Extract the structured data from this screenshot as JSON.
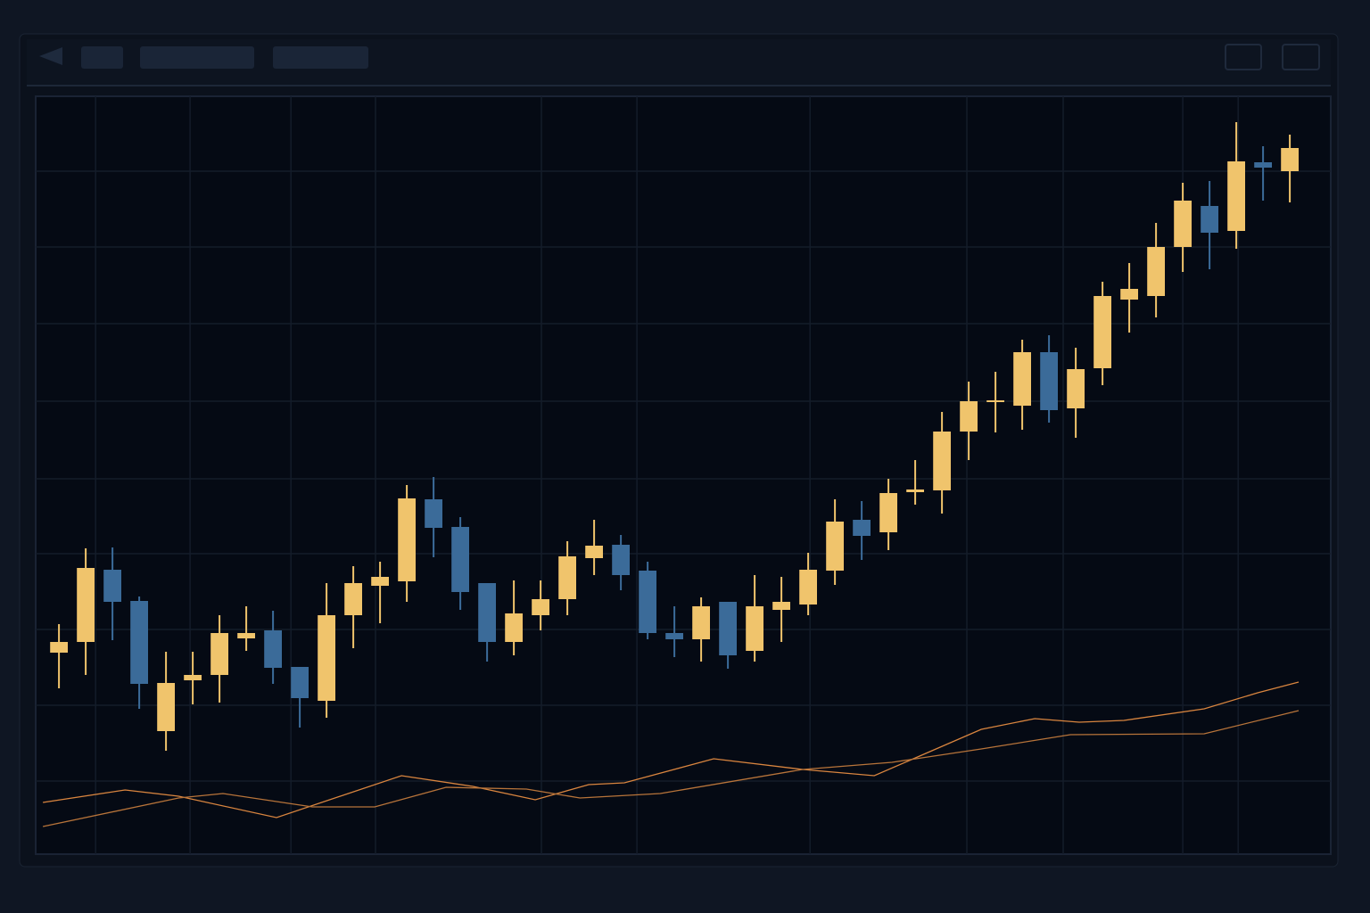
{
  "chart_data": {
    "type": "candlestick",
    "x": [
      0,
      1,
      2,
      3,
      4,
      5,
      6,
      7,
      8,
      9,
      10,
      11,
      12,
      13,
      14,
      15,
      16,
      17,
      18,
      19,
      20,
      21,
      22,
      23,
      24,
      25,
      26,
      27,
      28,
      29,
      30,
      31,
      32,
      33,
      34,
      35,
      36,
      37,
      38,
      39,
      40,
      41,
      42,
      43,
      44,
      45,
      46
    ],
    "open": [
      226,
      238,
      319,
      284,
      138,
      195,
      201,
      242,
      251,
      210,
      172,
      268,
      301,
      306,
      398,
      367,
      304,
      238,
      268,
      286,
      332,
      347,
      318,
      248,
      241,
      283,
      228,
      274,
      280,
      318,
      375,
      361,
      406,
      408,
      474,
      507,
      503,
      563,
      500,
      545,
      622,
      626,
      681,
      727,
      699,
      776,
      766
    ],
    "high": [
      258,
      343,
      344,
      289,
      227,
      227,
      268,
      278,
      273,
      210,
      304,
      323,
      328,
      414,
      423,
      378,
      304,
      307,
      307,
      351,
      375,
      358,
      328,
      278,
      288,
      283,
      313,
      311,
      338,
      398,
      396,
      421,
      442,
      496,
      530,
      541,
      577,
      582,
      568,
      642,
      663,
      708,
      753,
      755,
      821,
      794,
      807
    ],
    "low": [
      186,
      201,
      240,
      163,
      116,
      168,
      170,
      228,
      191,
      142,
      153,
      231,
      259,
      283,
      333,
      274,
      216,
      223,
      251,
      268,
      313,
      296,
      241,
      221,
      216,
      208,
      216,
      238,
      268,
      302,
      330,
      341,
      392,
      382,
      442,
      473,
      476,
      484,
      467,
      526,
      585,
      602,
      653,
      656,
      679,
      733,
      731
    ],
    "close": [
      238,
      321,
      283,
      191,
      192,
      201,
      248,
      248,
      209,
      175,
      268,
      304,
      311,
      399,
      366,
      294,
      238,
      270,
      286,
      334,
      346,
      313,
      248,
      241,
      278,
      223,
      278,
      283,
      319,
      373,
      357,
      405,
      409,
      474,
      508,
      509,
      563,
      498,
      544,
      626,
      634,
      681,
      733,
      697,
      777,
      770,
      792
    ],
    "up_color": "#f0c46c",
    "down_color": "#3b6b99",
    "series": [
      {
        "color": "#d9853f",
        "x": [
          -0.6,
          2.47,
          4.47,
          8.13,
          12.8,
          15.47,
          17.8,
          19.8,
          21.13,
          24.47,
          27.8,
          30.47,
          34.47,
          36.47,
          38.13,
          39.8,
          42.8,
          44.8,
          46.33
        ],
        "values": [
          58,
          72,
          65,
          41,
          88,
          76,
          61,
          78,
          80,
          107,
          95,
          88,
          140,
          152,
          148,
          150,
          163,
          181,
          193
        ]
      },
      {
        "color": "#b8743a",
        "x": [
          -0.6,
          4.47,
          6.13,
          9.47,
          11.8,
          14.47,
          17.47,
          19.47,
          22.47,
          27.8,
          31.13,
          34.47,
          37.8,
          42.8,
          46.33
        ],
        "values": [
          31,
          63,
          68,
          53,
          53,
          75,
          73,
          63,
          68,
          95,
          103,
          118,
          134,
          135,
          161
        ]
      }
    ],
    "xlim": [
      -0.87,
      47.53
    ],
    "ylim": [
      0,
      850
    ],
    "xticks": [
      1.37,
      4.9,
      8.67,
      11.83,
      18.03,
      21.6,
      28.07,
      33.93,
      37.53,
      42,
      44.07
    ],
    "yticks": [
      82,
      167,
      252,
      337,
      421,
      508,
      595,
      681,
      766
    ],
    "grid": true
  }
}
